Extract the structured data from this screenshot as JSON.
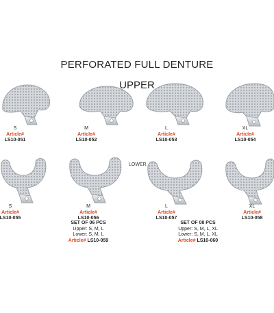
{
  "page": {
    "title": "PERFORATED FULL DENTURE",
    "subtitle": "UPPER",
    "lower_label": "LOWER"
  },
  "upper_items": [
    {
      "size": "S",
      "article_label": "Article#",
      "code": "LS10-051"
    },
    {
      "size": "M",
      "article_label": "Article#",
      "code": "LS10-052"
    },
    {
      "size": "L",
      "article_label": "Article#",
      "code": "LS10-053"
    },
    {
      "size": "XL",
      "article_label": "Article#",
      "code": "LS10-054"
    }
  ],
  "lower_items": [
    {
      "size": "S",
      "article_label": "Article#",
      "code": "LS10-055"
    },
    {
      "size": "M",
      "article_label": "Article#",
      "code": "LS10-056"
    },
    {
      "size": "L",
      "article_label": "Article#",
      "code": "LS10-057"
    },
    {
      "size": "XL",
      "article_label": "Article#",
      "code": "LS10-058"
    }
  ],
  "sets": [
    {
      "title": "SET OF 06 PCS",
      "upper": "Upper: S, M, L",
      "lower": "Lower: S, M, L",
      "article_label": "Article#",
      "code": "LS10-059"
    },
    {
      "title": "SET OF 08 PCS",
      "upper": "Upper: S, M, L, XL",
      "lower": "Lower: S, M, L, XL",
      "article_label": "Article#",
      "code": "LS10-060"
    }
  ],
  "colors": {
    "article": "#e0481f",
    "steel": "#c9ccd0"
  }
}
